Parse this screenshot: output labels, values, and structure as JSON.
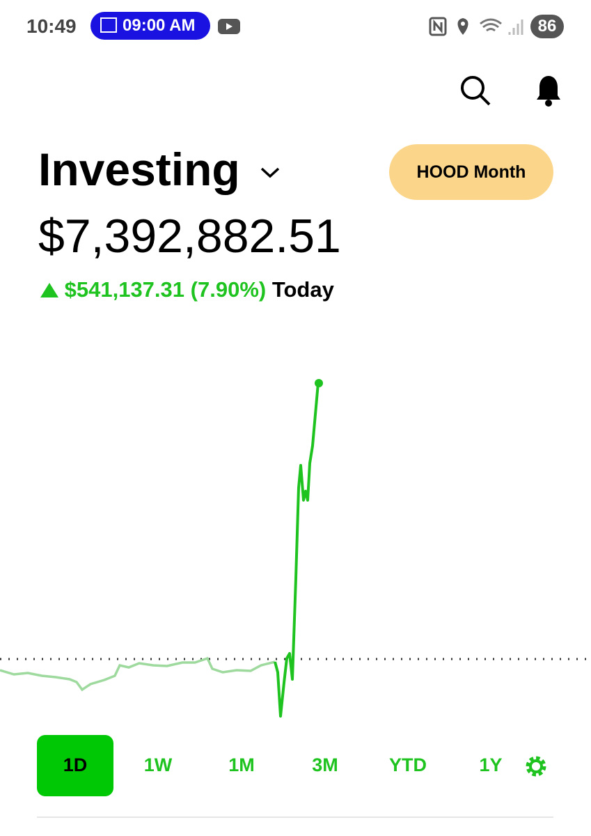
{
  "status_bar": {
    "time": "10:49",
    "pill": "09:00 AM",
    "battery": "86"
  },
  "header": {
    "title": "Investing",
    "button": "HOOD Month"
  },
  "portfolio": {
    "value": "$7,392,882.51",
    "change": "$541,137.31",
    "percent": "(7.90%)",
    "period": "Today"
  },
  "tabs": [
    "1D",
    "1W",
    "1M",
    "3M",
    "YTD",
    "1Y"
  ]
}
